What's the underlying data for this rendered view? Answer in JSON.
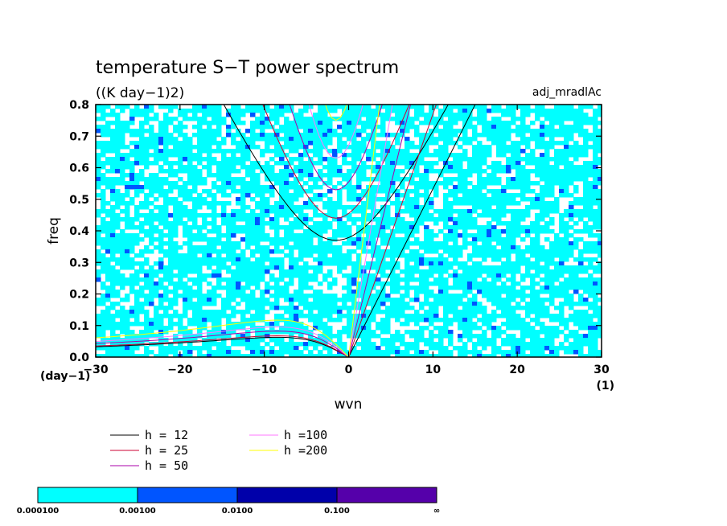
{
  "chart_data": {
    "type": "heatmap",
    "title": "temperature S−T power spectrum",
    "units_label": "((K day−1)2)",
    "dataset_label": "adj_mradlAc",
    "xlabel": "wvn",
    "ylabel": "freq",
    "x_unit_label": "(1)",
    "y_unit_label": "(day−1)",
    "xlim": [
      -30,
      30
    ],
    "ylim": [
      0,
      0.8
    ],
    "x_ticks": [
      -30,
      -20,
      -10,
      0,
      10,
      20,
      30
    ],
    "x_tick_labels": [
      "−30",
      "−20",
      "−10",
      "0",
      "10",
      "20",
      "30"
    ],
    "y_ticks": [
      0,
      0.1,
      0.2,
      0.3,
      0.4,
      0.5,
      0.6,
      0.7,
      0.8
    ],
    "y_tick_labels": [
      "0.0",
      "0.1",
      "0.2",
      "0.3",
      "0.4",
      "0.5",
      "0.6",
      "0.7",
      "0.8"
    ],
    "dispersion_curves": [
      {
        "label": "h = 12",
        "color": "#000000",
        "kelvin_slope": 0.0533,
        "rossby_f": 0.067,
        "gravity_f0": 0.37
      },
      {
        "label": "h = 25",
        "color": "#cc0033",
        "kelvin_slope": 0.077,
        "rossby_f": 0.072,
        "gravity_f0": 0.44
      },
      {
        "label": "h = 50",
        "color": "#aa00aa",
        "kelvin_slope": 0.109,
        "rossby_f": 0.088,
        "gravity_f0": 0.53
      },
      {
        "label": "h =100",
        "color": "#ff77ff",
        "kelvin_slope": 0.154,
        "rossby_f": 0.102,
        "gravity_f0": 0.63
      },
      {
        "label": "h =200",
        "color": "#ffff00",
        "kelvin_slope": 0.218,
        "rossby_f": 0.125,
        "gravity_f0": 0.75
      }
    ],
    "contour_levels": [
      {
        "label": "0.000100",
        "color": "#00ffff"
      },
      {
        "label": "0.00100",
        "color": "#0055ff"
      },
      {
        "label": "0.0100",
        "color": "#0000aa"
      },
      {
        "label": "0.100",
        "color": "#5500aa"
      },
      {
        "label": "∞",
        "color": ""
      }
    ]
  }
}
